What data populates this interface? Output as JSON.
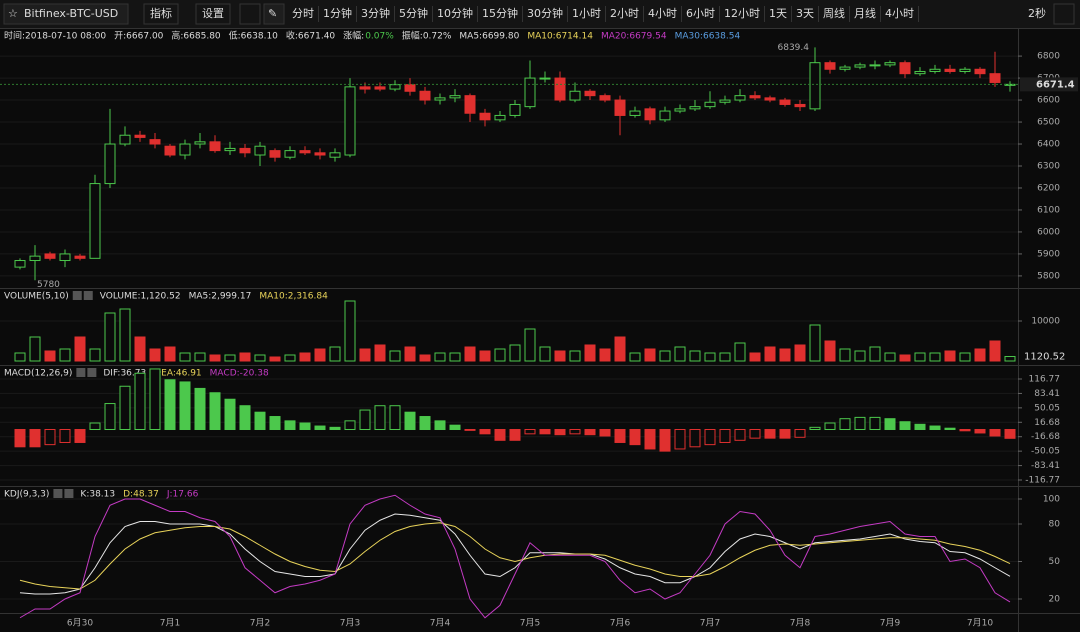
{
  "toolbar": {
    "symbol": "Bitfinex-BTC-USD",
    "buttons": [
      "指标",
      "设置"
    ],
    "intervals": [
      "分时",
      "1分钟",
      "3分钟",
      "5分钟",
      "10分钟",
      "15分钟",
      "30分钟",
      "1小时",
      "2小时",
      "4小时",
      "6小时",
      "12小时",
      "1天",
      "3天",
      "周线",
      "月线",
      "4小时"
    ],
    "active": [
      9,
      16
    ],
    "refresh": "2秒"
  },
  "info": [
    {
      "text": "时间:2018-07-10 08:00",
      "color": "#ddd"
    },
    {
      "text": "开:6667.00",
      "color": "#ddd"
    },
    {
      "text": "高:6685.80",
      "color": "#ddd"
    },
    {
      "text": "低:6638.10",
      "color": "#ddd"
    },
    {
      "text": "收:6671.40",
      "color": "#ddd"
    },
    {
      "text": "涨幅:",
      "color": "#ddd"
    },
    {
      "text": "0.07%",
      "color": "#4cc84c"
    },
    {
      "text": "振幅:0.72%",
      "color": "#ddd"
    },
    {
      "text": "MA5:6699.80",
      "color": "#ddd"
    },
    {
      "text": "MA10:6714.14",
      "color": "#e8d35a"
    },
    {
      "text": "MA20:6679.54",
      "color": "#c43bc4"
    },
    {
      "text": "MA30:6638.54",
      "color": "#5a9de0"
    }
  ],
  "chart_data": [
    {
      "type": "candlestick",
      "up_color": "#4cc84c",
      "down_color": "#e0302f",
      "categories": [
        null,
        null,
        null,
        null,
        "6月30",
        null,
        null,
        null,
        null,
        null,
        "7月1",
        null,
        null,
        null,
        null,
        null,
        "7月2",
        null,
        null,
        null,
        null,
        null,
        "7月3",
        null,
        null,
        null,
        null,
        null,
        "7月4",
        null,
        null,
        null,
        null,
        null,
        "7月5",
        null,
        null,
        null,
        null,
        null,
        "7月6",
        null,
        null,
        null,
        null,
        null,
        "7月7",
        null,
        null,
        null,
        null,
        null,
        "7月8",
        null,
        null,
        null,
        null,
        null,
        "7月9",
        null,
        null,
        null,
        null,
        null,
        "7月10",
        null,
        null
      ],
      "open": [
        5840,
        5870,
        5900,
        5870,
        5890,
        5880,
        6220,
        6400,
        6440,
        6420,
        6390,
        6350,
        6400,
        6410,
        6370,
        6380,
        6350,
        6370,
        6340,
        6370,
        6360,
        6340,
        6350,
        6660,
        6660,
        6650,
        6670,
        6640,
        6600,
        6610,
        6620,
        6540,
        6510,
        6530,
        6570,
        6700,
        6700,
        6600,
        6640,
        6620,
        6600,
        6530,
        6560,
        6510,
        6550,
        6560,
        6570,
        6590,
        6600,
        6620,
        6610,
        6600,
        6580,
        6560,
        6770,
        6740,
        6750,
        6760,
        6760,
        6770,
        6720,
        6730,
        6740,
        6730,
        6740,
        6720,
        6667
      ],
      "high": [
        5880,
        5940,
        5910,
        5920,
        5900,
        6260,
        6560,
        6480,
        6460,
        6450,
        6400,
        6420,
        6450,
        6440,
        6410,
        6400,
        6410,
        6380,
        6390,
        6390,
        6380,
        6380,
        6700,
        6680,
        6680,
        6690,
        6700,
        6660,
        6630,
        6650,
        6630,
        6560,
        6550,
        6600,
        6780,
        6730,
        6730,
        6680,
        6650,
        6630,
        6620,
        6570,
        6570,
        6570,
        6580,
        6600,
        6640,
        6620,
        6650,
        6640,
        6620,
        6610,
        6600,
        6839.4,
        6780,
        6760,
        6770,
        6780,
        6780,
        6780,
        6750,
        6760,
        6760,
        6750,
        6750,
        6820,
        6685.8
      ],
      "low": [
        5830,
        5780,
        5870,
        5840,
        5870,
        5880,
        6200,
        6390,
        6410,
        6380,
        6340,
        6330,
        6380,
        6360,
        6350,
        6340,
        6300,
        6320,
        6330,
        6350,
        6330,
        6320,
        6340,
        6630,
        6640,
        6640,
        6620,
        6580,
        6580,
        6590,
        6500,
        6480,
        6500,
        6520,
        6560,
        6680,
        6590,
        6590,
        6600,
        6590,
        6440,
        6520,
        6490,
        6500,
        6540,
        6550,
        6560,
        6580,
        6590,
        6600,
        6590,
        6570,
        6550,
        6550,
        6720,
        6730,
        6740,
        6740,
        6750,
        6700,
        6710,
        6720,
        6720,
        6720,
        6700,
        6660,
        6638.1
      ],
      "close": [
        5870,
        5890,
        5880,
        5900,
        5880,
        6220,
        6400,
        6440,
        6430,
        6400,
        6350,
        6400,
        6410,
        6370,
        6380,
        6360,
        6390,
        6340,
        6370,
        6360,
        6350,
        6360,
        6660,
        6650,
        6650,
        6670,
        6640,
        6600,
        6610,
        6620,
        6540,
        6510,
        6530,
        6580,
        6700,
        6700,
        6600,
        6640,
        6620,
        6600,
        6530,
        6550,
        6510,
        6550,
        6560,
        6570,
        6590,
        6600,
        6620,
        6610,
        6600,
        6580,
        6570,
        6770,
        6740,
        6750,
        6760,
        6760,
        6770,
        6720,
        6730,
        6740,
        6730,
        6740,
        6720,
        6680,
        6671.4
      ],
      "high_label": "6839.4",
      "low_label": "5780",
      "last_label": "6671.4",
      "ylim": [
        5745,
        6855
      ],
      "yticks": [
        5800,
        5900,
        6000,
        6100,
        6200,
        6300,
        6400,
        6500,
        6600,
        6700,
        6800
      ]
    },
    {
      "type": "bar",
      "title": "VOLUME(5,10)",
      "annotations": [
        {
          "text": "VOLUME:1,120.52",
          "color": "#ddd"
        },
        {
          "text": "MA5:2,999.17",
          "color": "#ddd"
        },
        {
          "text": "MA10:2,316.84",
          "color": "#e8d35a"
        }
      ],
      "values": [
        2000,
        6000,
        2500,
        3000,
        6000,
        3000,
        12000,
        13000,
        6000,
        3000,
        3500,
        2000,
        2000,
        1500,
        1500,
        2000,
        1500,
        1000,
        1500,
        2000,
        3000,
        3500,
        15000,
        3000,
        4000,
        2500,
        3500,
        1500,
        2000,
        2000,
        3500,
        2500,
        3000,
        4000,
        8000,
        3500,
        2500,
        2500,
        4000,
        3000,
        6000,
        2000,
        3000,
        2500,
        3500,
        2500,
        2000,
        2000,
        4500,
        2000,
        3500,
        3000,
        4000,
        9000,
        5000,
        3000,
        2500,
        3500,
        2000,
        1500,
        2000,
        2000,
        2500,
        2000,
        3000,
        5000,
        1120.52
      ],
      "last_label": "1120.52",
      "ylim": [
        0,
        18000
      ],
      "yticks": [
        10000
      ]
    },
    {
      "type": "histogram-bar",
      "title": "MACD(12,26,9)",
      "annotations": [
        {
          "text": "DIF:36.73",
          "color": "#ddd"
        },
        {
          "text": "DEA:46.91",
          "color": "#e8d35a"
        },
        {
          "text": "MACD:-20.38",
          "color": "#c43bc4"
        }
      ],
      "values": [
        -40,
        -40,
        -35,
        -30,
        -30,
        15,
        60,
        100,
        130,
        140,
        115,
        110,
        95,
        85,
        70,
        55,
        40,
        30,
        20,
        15,
        8,
        5,
        20,
        45,
        55,
        55,
        40,
        30,
        20,
        10,
        -2,
        -10,
        -25,
        -25,
        -10,
        -10,
        -12,
        -10,
        -12,
        -15,
        -30,
        -35,
        -45,
        -50,
        -45,
        -40,
        -35,
        -30,
        -25,
        -20,
        -20,
        -20,
        -18,
        5,
        15,
        25,
        28,
        28,
        25,
        18,
        12,
        8,
        3,
        -3,
        -8,
        -15,
        -20.38
      ],
      "ylim": [
        -130.64,
        146.83
      ],
      "yticks": [
        116.77,
        83.41,
        50.05,
        16.68,
        -16.68,
        -50.05,
        -83.41,
        -116.77
      ]
    },
    {
      "type": "line",
      "title": "KDJ(9,3,3)",
      "annotations": [
        {
          "text": "K:38.13",
          "color": "#ddd"
        },
        {
          "text": "D:48.37",
          "color": "#e8d35a"
        },
        {
          "text": "J:17.66",
          "color": "#c43bc4"
        }
      ],
      "series": [
        {
          "name": "K",
          "color": "#e6e6e6",
          "values": [
            25,
            24,
            24,
            25,
            28,
            45,
            65,
            78,
            82,
            82,
            80,
            80,
            80,
            78,
            72,
            60,
            50,
            42,
            40,
            38,
            38,
            40,
            60,
            75,
            83,
            88,
            87,
            85,
            83,
            72,
            55,
            40,
            38,
            45,
            57,
            57,
            57,
            56,
            56,
            52,
            45,
            40,
            38,
            33,
            33,
            38,
            45,
            58,
            68,
            72,
            70,
            65,
            60,
            65,
            66,
            67,
            68,
            70,
            72,
            68,
            66,
            65,
            58,
            57,
            52,
            45,
            38.13
          ]
        },
        {
          "name": "D",
          "color": "#e8d35a",
          "values": [
            35,
            32,
            30,
            29,
            28,
            35,
            48,
            60,
            68,
            73,
            75,
            77,
            78,
            78,
            76,
            70,
            63,
            56,
            50,
            46,
            43,
            42,
            48,
            58,
            67,
            74,
            78,
            80,
            81,
            78,
            70,
            60,
            53,
            50,
            53,
            55,
            56,
            56,
            56,
            55,
            51,
            47,
            44,
            40,
            38,
            38,
            40,
            46,
            53,
            59,
            63,
            64,
            63,
            64,
            65,
            66,
            67,
            68,
            69,
            69,
            68,
            67,
            64,
            62,
            59,
            54,
            48.37
          ]
        },
        {
          "name": "J",
          "color": "#c43bc4",
          "values": [
            5,
            12,
            12,
            20,
            25,
            70,
            95,
            100,
            100,
            95,
            90,
            90,
            85,
            82,
            70,
            45,
            35,
            25,
            30,
            32,
            35,
            40,
            80,
            95,
            100,
            103,
            95,
            88,
            85,
            60,
            20,
            5,
            15,
            40,
            65,
            55,
            55,
            55,
            55,
            50,
            35,
            25,
            28,
            20,
            25,
            40,
            55,
            80,
            90,
            88,
            75,
            55,
            45,
            70,
            72,
            75,
            78,
            80,
            82,
            72,
            70,
            70,
            50,
            52,
            45,
            25,
            17.66
          ]
        }
      ],
      "ylim": [
        9.6,
        109.6
      ],
      "yticks": [
        100,
        80,
        50,
        20
      ]
    }
  ]
}
